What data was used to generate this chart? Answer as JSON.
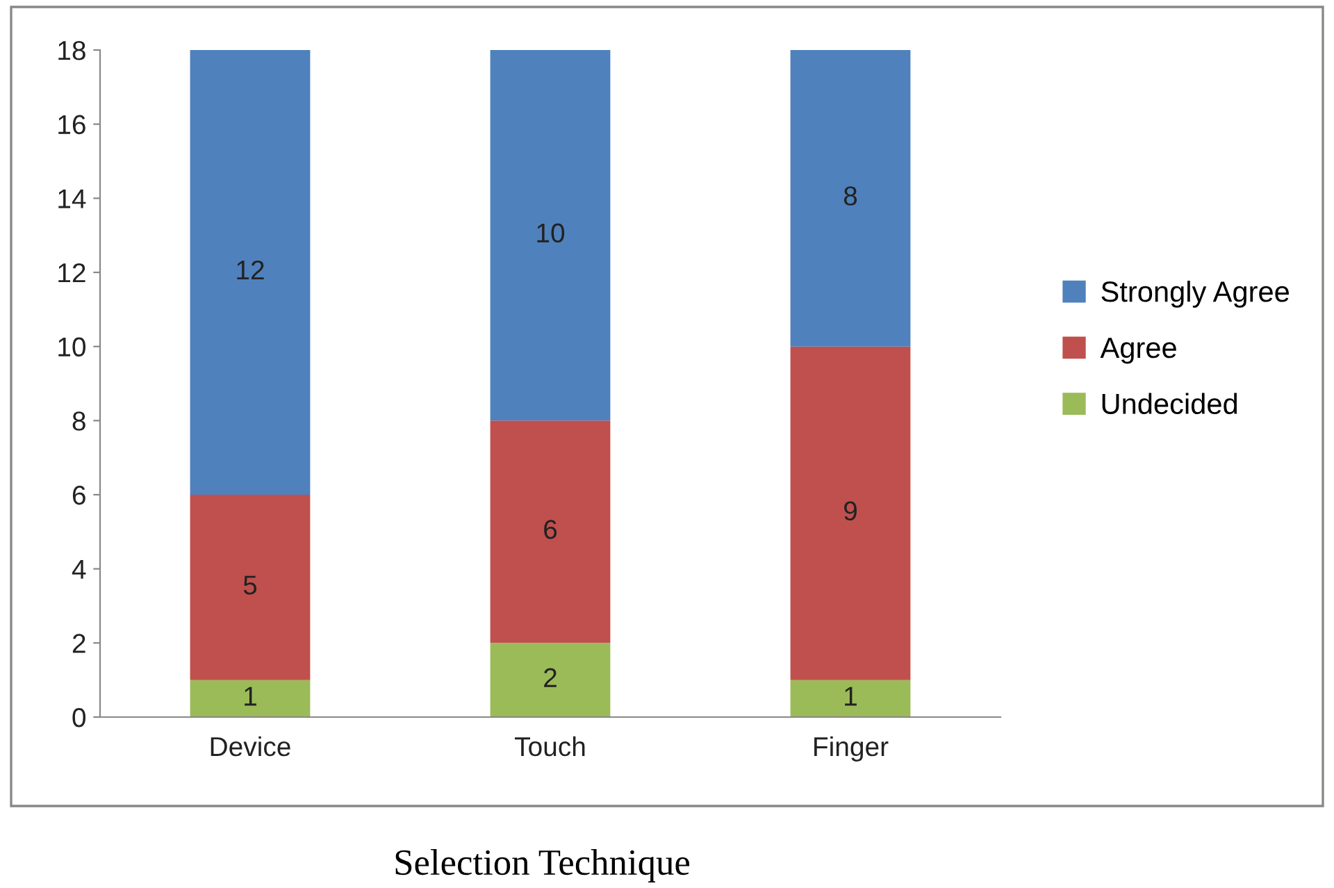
{
  "chart_data": {
    "type": "bar",
    "stacked": true,
    "xlabel": "Selection Technique",
    "categories": [
      "Device",
      "Touch",
      "Finger"
    ],
    "series": [
      {
        "name": "Undecided",
        "color": "#9bbb59",
        "values": [
          1,
          2,
          1
        ]
      },
      {
        "name": "Agree",
        "color": "#c0504d",
        "values": [
          5,
          6,
          9
        ]
      },
      {
        "name": "Strongly Agree",
        "color": "#4f81bd",
        "values": [
          12,
          10,
          8
        ]
      }
    ],
    "ylim": [
      0,
      18
    ],
    "yticks": [
      0,
      2,
      4,
      6,
      8,
      10,
      12,
      14,
      16,
      18
    ],
    "grid": false,
    "legend": "right",
    "data_labels": true
  }
}
